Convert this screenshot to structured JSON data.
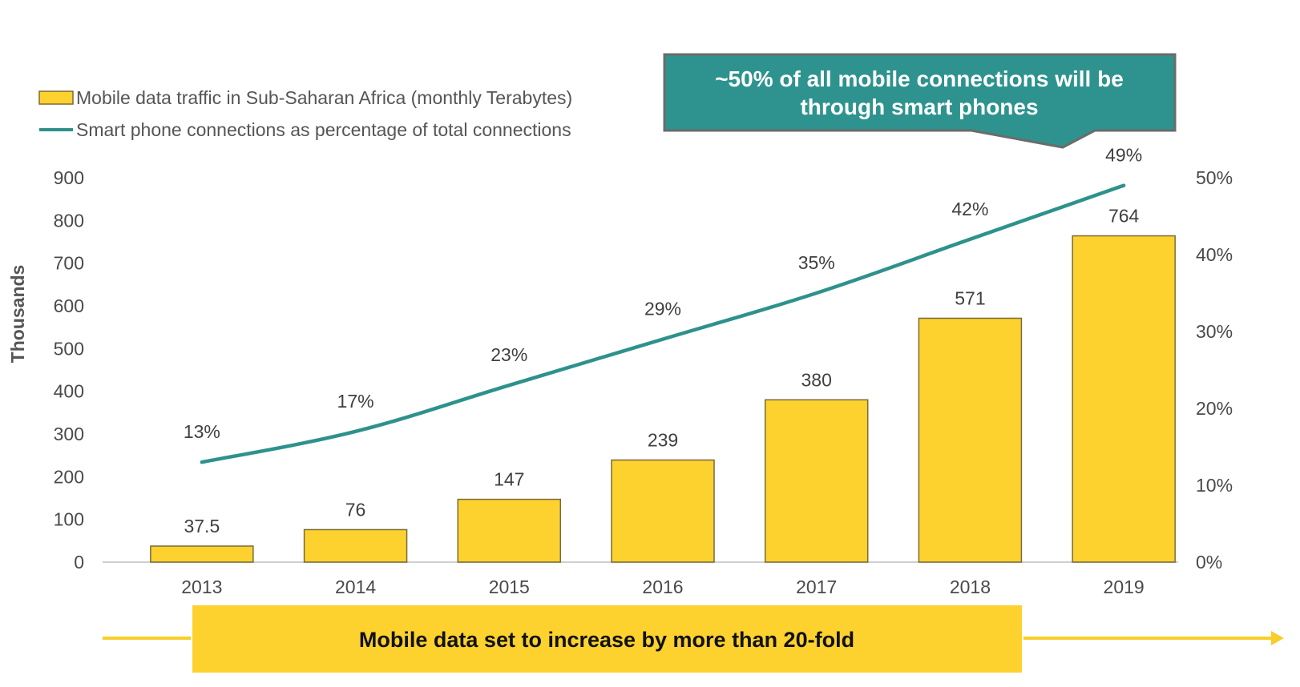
{
  "colors": {
    "bar_fill": "#FDD22E",
    "bar_stroke": "#7a6a3a",
    "line": "#2E918C",
    "callout_fill": "#2E938E",
    "callout_border": "#6b6b6b",
    "banner_fill": "#FDD22E",
    "arrow": "#F7CE2A",
    "axis_line": "#d0d0d0"
  },
  "callout": {
    "line1": "~50% of all mobile connections will be",
    "line2": "through smart phones"
  },
  "banner": {
    "text": "Mobile data set to increase by more than 20-fold"
  },
  "chart_data": {
    "type": "bar",
    "title": "",
    "xlabel": "",
    "ylabel": "Thousands",
    "y2label": "",
    "categories": [
      "2013",
      "2014",
      "2015",
      "2016",
      "2017",
      "2018",
      "2019"
    ],
    "ylim": [
      0,
      900
    ],
    "y_ticks": [
      0,
      100,
      200,
      300,
      400,
      500,
      600,
      700,
      800,
      900
    ],
    "y2lim": [
      0,
      0.5
    ],
    "y2_ticks": [
      "0%",
      "10%",
      "20%",
      "30%",
      "40%",
      "50%"
    ],
    "y2_tick_values": [
      0,
      0.1,
      0.2,
      0.3,
      0.4,
      0.5
    ],
    "grid": false,
    "legend_position": "top-left",
    "series": [
      {
        "name": "Mobile data traffic in Sub-Saharan Africa (monthly Terabytes)",
        "type": "bar",
        "axis": "left",
        "values": [
          37.5,
          76,
          147,
          239,
          380,
          571,
          764
        ],
        "labels": [
          "37.5",
          "76",
          "147",
          "239",
          "380",
          "571",
          "764"
        ]
      },
      {
        "name": "Smart phone connections as percentage of total connections",
        "type": "line",
        "axis": "right",
        "values": [
          0.13,
          0.17,
          0.23,
          0.29,
          0.35,
          0.42,
          0.49
        ],
        "labels": [
          "13%",
          "17%",
          "23%",
          "29%",
          "35%",
          "42%",
          "49%"
        ]
      }
    ]
  }
}
